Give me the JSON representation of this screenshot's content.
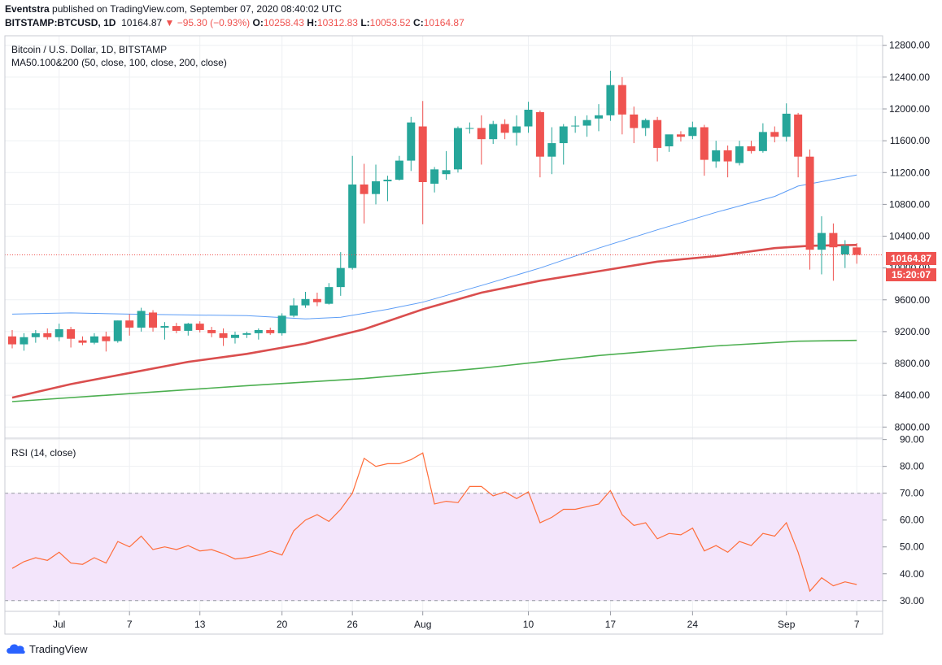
{
  "header": {
    "publisher": "Eventstra",
    "published_text": "published on TradingView.com, September 07, 2020 08:40:02 UTC",
    "symbol": "BITSTAMP:BTCUSD, 1D",
    "last": "10164.87",
    "change": "▼ −95.30 (−0.93%)",
    "o_label": "O:",
    "o": "10258.43",
    "h_label": "H:",
    "h": "10312.83",
    "l_label": "L:",
    "l": "10053.52",
    "c_label": "C:",
    "c": "10164.87"
  },
  "footer": {
    "brand": "TradingView"
  },
  "colors": {
    "up": "#26a69a",
    "down": "#ef5350",
    "ma50": "#5b9cf6",
    "ma100": "#d32f2f",
    "ma200": "#4caf50",
    "rsi": "#ff6d3a",
    "rsi_band": "#f3e5fb"
  },
  "chart_data": [
    {
      "type": "candlestick",
      "title": "Bitcoin / U.S. Dollar, 1D, BITSTAMP",
      "subtitle": "MA50.100&200 (50, close, 100, close, 200, close)",
      "x_ticks": [
        {
          "i": 4,
          "label": "Jul"
        },
        {
          "i": 10,
          "label": "7"
        },
        {
          "i": 16,
          "label": "13"
        },
        {
          "i": 23,
          "label": "20"
        },
        {
          "i": 29,
          "label": "26"
        },
        {
          "i": 35,
          "label": "Aug"
        },
        {
          "i": 44,
          "label": "10"
        },
        {
          "i": 51,
          "label": "17"
        },
        {
          "i": 58,
          "label": "24"
        },
        {
          "i": 66,
          "label": "Sep"
        },
        {
          "i": 72,
          "label": "7"
        }
      ],
      "y_ticks": [
        "8000.00",
        "8400.00",
        "8800.00",
        "9200.00",
        "9600.00",
        "10000.00",
        "10400.00",
        "10800.00",
        "11200.00",
        "11600.00",
        "12000.00",
        "12400.00",
        "12800.00"
      ],
      "ylim": [
        7860,
        12920
      ],
      "last_price_label": "10164.87",
      "countdown_label": "15:20:07",
      "ohlc": [
        [
          9140,
          9220,
          8990,
          9040
        ],
        [
          9040,
          9180,
          8960,
          9130
        ],
        [
          9130,
          9220,
          9060,
          9180
        ],
        [
          9180,
          9240,
          9100,
          9130
        ],
        [
          9130,
          9300,
          9080,
          9230
        ],
        [
          9230,
          9260,
          9000,
          9110
        ],
        [
          9090,
          9140,
          9030,
          9060
        ],
        [
          9060,
          9180,
          9040,
          9140
        ],
        [
          9140,
          9200,
          8950,
          9080
        ],
        [
          9080,
          9340,
          9060,
          9340
        ],
        [
          9340,
          9420,
          9150,
          9250
        ],
        [
          9250,
          9500,
          9200,
          9460
        ],
        [
          9440,
          9470,
          9200,
          9250
        ],
        [
          9250,
          9320,
          9100,
          9270
        ],
        [
          9270,
          9310,
          9180,
          9210
        ],
        [
          9210,
          9310,
          9150,
          9300
        ],
        [
          9300,
          9330,
          9190,
          9220
        ],
        [
          9220,
          9260,
          9130,
          9180
        ],
        [
          9180,
          9240,
          9020,
          9120
        ],
        [
          9120,
          9200,
          9050,
          9160
        ],
        [
          9160,
          9200,
          9120,
          9180
        ],
        [
          9180,
          9240,
          9100,
          9220
        ],
        [
          9220,
          9250,
          9160,
          9180
        ],
        [
          9180,
          9430,
          9150,
          9400
        ],
        [
          9400,
          9620,
          9380,
          9530
        ],
        [
          9530,
          9700,
          9500,
          9610
        ],
        [
          9610,
          9690,
          9520,
          9570
        ],
        [
          9550,
          9810,
          9540,
          9760
        ],
        [
          9760,
          10200,
          9650,
          10000
        ],
        [
          10000,
          11410,
          9980,
          11050
        ],
        [
          11050,
          11310,
          10560,
          10930
        ],
        [
          10930,
          11300,
          10800,
          11090
        ],
        [
          11090,
          11160,
          10840,
          11110
        ],
        [
          11110,
          11410,
          11100,
          11350
        ],
        [
          11350,
          11900,
          11220,
          11830
        ],
        [
          11780,
          12100,
          10550,
          11080
        ],
        [
          11060,
          11270,
          10950,
          11240
        ],
        [
          11180,
          11470,
          11110,
          11230
        ],
        [
          11240,
          11780,
          11200,
          11760
        ],
        [
          11760,
          11830,
          11690,
          11760
        ],
        [
          11760,
          11920,
          11300,
          11620
        ],
        [
          11620,
          11850,
          11560,
          11810
        ],
        [
          11810,
          11870,
          11620,
          11700
        ],
        [
          11700,
          11920,
          11540,
          11780
        ],
        [
          11780,
          12090,
          11700,
          11990
        ],
        [
          11960,
          11980,
          11140,
          11400
        ],
        [
          11400,
          11770,
          11180,
          11570
        ],
        [
          11570,
          11810,
          11300,
          11780
        ],
        [
          11780,
          11910,
          11700,
          11790
        ],
        [
          11790,
          11920,
          11650,
          11860
        ],
        [
          11880,
          12060,
          11720,
          11920
        ],
        [
          11920,
          12480,
          11850,
          12300
        ],
        [
          12300,
          12400,
          11680,
          11930
        ],
        [
          11930,
          12030,
          11570,
          11760
        ],
        [
          11760,
          11880,
          11660,
          11860
        ],
        [
          11860,
          11900,
          11340,
          11510
        ],
        [
          11530,
          11670,
          11460,
          11680
        ],
        [
          11680,
          11720,
          11590,
          11650
        ],
        [
          11660,
          11840,
          11620,
          11770
        ],
        [
          11770,
          11800,
          11160,
          11360
        ],
        [
          11340,
          11600,
          11260,
          11480
        ],
        [
          11480,
          11540,
          11140,
          11340
        ],
        [
          11320,
          11600,
          11290,
          11530
        ],
        [
          11530,
          11600,
          11440,
          11470
        ],
        [
          11470,
          11820,
          11450,
          11710
        ],
        [
          11710,
          11780,
          11580,
          11650
        ],
        [
          11650,
          12070,
          11590,
          11940
        ],
        [
          11930,
          11950,
          11140,
          11400
        ],
        [
          11400,
          11490,
          9980,
          10230
        ],
        [
          10230,
          10650,
          9920,
          10440
        ],
        [
          10440,
          10560,
          9840,
          10260
        ],
        [
          10170,
          10350,
          10000,
          10280
        ],
        [
          10258.43,
          10312.83,
          10053.52,
          10164.87
        ]
      ],
      "ma50": [
        [
          0,
          9420
        ],
        [
          5,
          9435
        ],
        [
          10,
          9420
        ],
        [
          15,
          9410
        ],
        [
          20,
          9400
        ],
        [
          25,
          9360
        ],
        [
          28,
          9380
        ],
        [
          32,
          9480
        ],
        [
          35,
          9570
        ],
        [
          40,
          9780
        ],
        [
          45,
          10000
        ],
        [
          50,
          10250
        ],
        [
          55,
          10480
        ],
        [
          60,
          10700
        ],
        [
          65,
          10900
        ],
        [
          67,
          11030
        ],
        [
          72,
          11170
        ]
      ],
      "ma100": [
        [
          0,
          8370
        ],
        [
          5,
          8540
        ],
        [
          10,
          8680
        ],
        [
          15,
          8820
        ],
        [
          20,
          8920
        ],
        [
          25,
          9050
        ],
        [
          30,
          9230
        ],
        [
          35,
          9480
        ],
        [
          40,
          9690
        ],
        [
          45,
          9840
        ],
        [
          50,
          9960
        ],
        [
          55,
          10080
        ],
        [
          60,
          10150
        ],
        [
          65,
          10250
        ],
        [
          68,
          10280
        ],
        [
          72,
          10290
        ]
      ],
      "ma200": [
        [
          0,
          8320
        ],
        [
          10,
          8420
        ],
        [
          20,
          8520
        ],
        [
          30,
          8610
        ],
        [
          40,
          8740
        ],
        [
          50,
          8900
        ],
        [
          60,
          9020
        ],
        [
          67,
          9080
        ],
        [
          72,
          9090
        ]
      ]
    },
    {
      "type": "line",
      "title": "RSI (14, close)",
      "y_ticks": [
        "30.00",
        "40.00",
        "50.00",
        "60.00",
        "70.00",
        "80.00",
        "90.00"
      ],
      "ylim": [
        26,
        90.5
      ],
      "band": [
        30,
        70
      ],
      "values": [
        42,
        44.5,
        46,
        45,
        48,
        44,
        43.5,
        46,
        44,
        52,
        50,
        54,
        49,
        50,
        49,
        50.5,
        48.5,
        49,
        47.5,
        45.5,
        46,
        47,
        48.5,
        47,
        56,
        60,
        62,
        59.5,
        64,
        70,
        83,
        80,
        81,
        81,
        82.5,
        85,
        66,
        67,
        66.5,
        72.5,
        72.5,
        69,
        70.5,
        68,
        70.5,
        59,
        61,
        64,
        64,
        65,
        66,
        71,
        62,
        58,
        59,
        53,
        55,
        54.5,
        57,
        48.5,
        50.5,
        48,
        52,
        50.5,
        55,
        54,
        59,
        48,
        33.5,
        38.5,
        35.5,
        37,
        36
      ]
    }
  ]
}
